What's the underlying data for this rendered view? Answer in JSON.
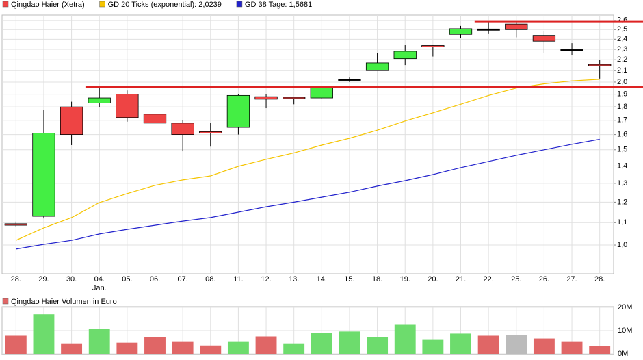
{
  "chart_data": [
    {
      "type": "candlestick",
      "categories": [
        "28.",
        "29.",
        "30.",
        "04.",
        "05.",
        "06.",
        "07.",
        "08.",
        "11.",
        "12.",
        "13.",
        "14.",
        "15.",
        "18.",
        "19.",
        "20.",
        "21.",
        "22.",
        "25.",
        "26.",
        "27.",
        "28."
      ],
      "month_labels": [
        null,
        null,
        null,
        "Jan.",
        null,
        null,
        null,
        null,
        null,
        null,
        null,
        null,
        null,
        null,
        null,
        null,
        null,
        null,
        null,
        null,
        null,
        null
      ],
      "series": [
        {
          "name": "Qingdao Haier (Xetra)",
          "color": "#ee4444",
          "up_color": "#44ee44",
          "down_color": "#ee4444",
          "open": [
            1.095,
            1.13,
            1.8,
            1.83,
            1.9,
            1.745,
            1.68,
            1.62,
            1.65,
            1.88,
            1.87,
            1.87,
            2.02,
            2.1,
            2.21,
            2.33,
            2.45,
            2.5,
            2.56,
            2.44,
            2.29,
            2.15
          ],
          "high": [
            1.105,
            1.78,
            1.84,
            1.96,
            1.93,
            1.77,
            1.7,
            1.68,
            1.9,
            1.9,
            1.88,
            1.97,
            2.04,
            2.26,
            2.34,
            2.34,
            2.54,
            2.59,
            2.59,
            2.48,
            2.36,
            2.2
          ],
          "low": [
            1.08,
            1.12,
            1.53,
            1.8,
            1.69,
            1.65,
            1.49,
            1.52,
            1.6,
            1.79,
            1.82,
            1.86,
            2.0,
            2.1,
            2.15,
            2.23,
            2.41,
            2.46,
            2.42,
            2.26,
            2.24,
            2.03
          ],
          "close": [
            1.088,
            1.61,
            1.6,
            1.87,
            1.72,
            1.68,
            1.6,
            1.61,
            1.89,
            1.86,
            1.865,
            1.96,
            2.02,
            2.17,
            2.28,
            2.32,
            2.51,
            2.5,
            2.5,
            2.38,
            2.29,
            2.14
          ]
        },
        {
          "name": "GD 20 Ticks (exponential): 2,0239",
          "color": "#f5c400",
          "type": "line",
          "values": [
            1.02,
            1.076,
            1.124,
            1.198,
            1.245,
            1.289,
            1.319,
            1.342,
            1.398,
            1.44,
            1.48,
            1.53,
            1.575,
            1.63,
            1.695,
            1.755,
            1.82,
            1.89,
            1.95,
            1.985,
            2.01,
            2.0239
          ]
        },
        {
          "name": "GD 38 Tage: 1,5681",
          "color": "#2222cc",
          "type": "line",
          "values": [
            0.983,
            1.003,
            1.02,
            1.048,
            1.069,
            1.088,
            1.107,
            1.124,
            1.15,
            1.177,
            1.2,
            1.226,
            1.252,
            1.285,
            1.315,
            1.35,
            1.39,
            1.427,
            1.465,
            1.5,
            1.535,
            1.5681
          ]
        }
      ],
      "levels": [
        {
          "value": 1.96,
          "color": "#dd2222",
          "from": "04."
        },
        {
          "value": 2.59,
          "color": "#dd2222",
          "from": "22."
        }
      ],
      "log_scale": true,
      "grid": true,
      "ylim": [
        0.885,
        2.66
      ],
      "yticks": [
        {
          "value": 1.0,
          "label": "1,0"
        },
        {
          "value": 1.1,
          "label": "1,1"
        },
        {
          "value": 1.2,
          "label": "1,2"
        },
        {
          "value": 1.3,
          "label": "1,3"
        },
        {
          "value": 1.4,
          "label": "1,4"
        },
        {
          "value": 1.5,
          "label": "1,5"
        },
        {
          "value": 1.6,
          "label": "1,6"
        },
        {
          "value": 1.7,
          "label": "1,7"
        },
        {
          "value": 1.8,
          "label": "1,8"
        },
        {
          "value": 1.9,
          "label": "1,9"
        },
        {
          "value": 2.0,
          "label": "2,0"
        },
        {
          "value": 2.1,
          "label": "2,1"
        },
        {
          "value": 2.2,
          "label": "2,2"
        },
        {
          "value": 2.3,
          "label": "2,3"
        },
        {
          "value": 2.4,
          "label": "2,4"
        },
        {
          "value": 2.5,
          "label": "2,5"
        },
        {
          "value": 2.6,
          "label": "2,6"
        }
      ]
    },
    {
      "type": "bar",
      "title": "Qingdao Haier Volumen in Euro",
      "title_color": "#e06666",
      "values": [
        7800000,
        17000000,
        4500000,
        10700000,
        4800000,
        7200000,
        5400000,
        3600000,
        5400000,
        7500000,
        4500000,
        9000000,
        9600000,
        7200000,
        12500000,
        6000000,
        8700000,
        7800000,
        8100000,
        6600000,
        5400000,
        3300000
      ],
      "colors": [
        "#e06666",
        "#6ddc6d",
        "#e06666",
        "#6ddc6d",
        "#e06666",
        "#e06666",
        "#e06666",
        "#e06666",
        "#6ddc6d",
        "#e06666",
        "#6ddc6d",
        "#6ddc6d",
        "#6ddc6d",
        "#6ddc6d",
        "#6ddc6d",
        "#6ddc6d",
        "#6ddc6d",
        "#e06666",
        "#bbbbbb",
        "#e06666",
        "#e06666",
        "#e06666"
      ],
      "grid": true,
      "ylim": [
        0,
        20000000
      ],
      "yticks": [
        {
          "value": 0,
          "label": "0M"
        },
        {
          "value": 10000000,
          "label": "10M"
        },
        {
          "value": 20000000,
          "label": "20M"
        }
      ]
    }
  ]
}
